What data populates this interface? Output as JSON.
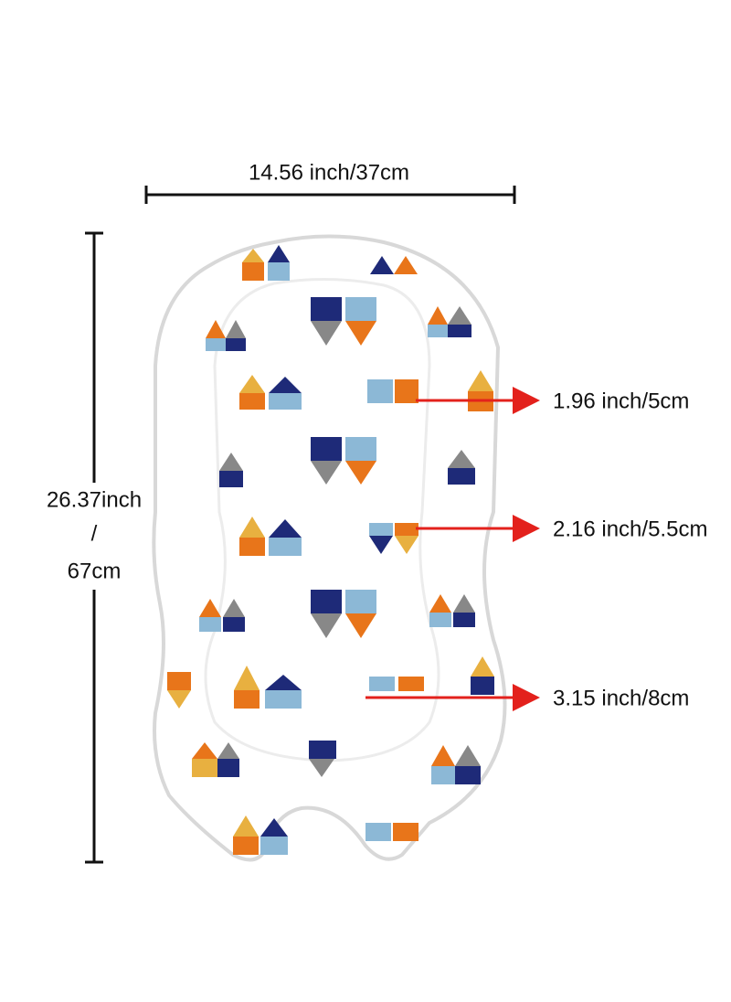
{
  "width_label": "14.56 inch/37cm",
  "height_label": [
    "26.37inch",
    "/",
    "67cm"
  ],
  "callouts": [
    "1.96 inch/5cm",
    "2.16 inch/5.5cm",
    "3.15 inch/8cm"
  ]
}
